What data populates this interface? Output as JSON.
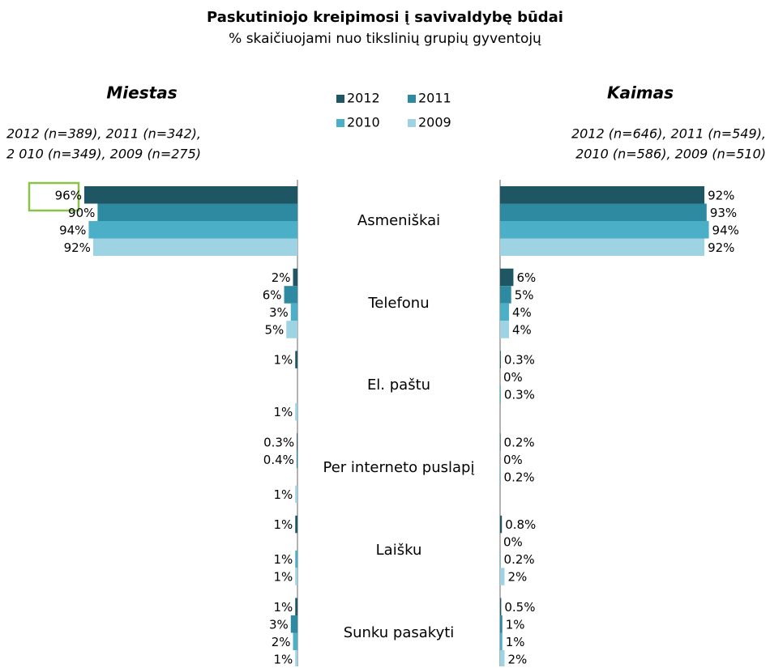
{
  "chart_data": {
    "type": "bar",
    "orientation": "horizontal",
    "title": "Paskutiniojo kreipimosi į savivaldybę būdai",
    "subtitle": "% skaičiuojami nuo tikslinių grupių gyventojų",
    "categories": [
      "Asmeniškai",
      "Telefonu",
      "El. paštu",
      "Per interneto puslapį",
      "Laišku",
      "Sunku pasakyti"
    ],
    "series": [
      {
        "name": "2012",
        "color": "#1f5663"
      },
      {
        "name": "2011",
        "color": "#2e8aa0"
      },
      {
        "name": "2010",
        "color": "#4bafc8"
      },
      {
        "name": "2009",
        "color": "#9dd3e2"
      }
    ],
    "xlim": [
      0,
      100
    ],
    "panels": [
      {
        "title": "Miestas",
        "direction": "left",
        "note": [
          "2012 (n=389), 2011 (n=342),",
          "2 010 (n=349),  2009 (n=275)"
        ],
        "series": [
          {
            "values": [
              96,
              2,
              1,
              0.3,
              1,
              1
            ],
            "value_labels": [
              "96%",
              "2%",
              "1%",
              "0.3%",
              "1%",
              "1%"
            ]
          },
          {
            "values": [
              90,
              6,
              0,
              0.4,
              0,
              3
            ],
            "value_labels": [
              "90%",
              "6%",
              null,
              "0.4%",
              null,
              "3%"
            ]
          },
          {
            "values": [
              94,
              3,
              0,
              0,
              1,
              2
            ],
            "value_labels": [
              "94%",
              "3%",
              null,
              null,
              "1%",
              "2%"
            ]
          },
          {
            "values": [
              92,
              5,
              1,
              1,
              1,
              1
            ],
            "value_labels": [
              "92%",
              "5%",
              "1%",
              "1%",
              "1%",
              "1%"
            ]
          }
        ]
      },
      {
        "title": "Kaimas",
        "direction": "right",
        "note": [
          "2012 (n=646), 2011 (n=549),",
          "2010 (n=586), 2009 (n=510)"
        ],
        "series": [
          {
            "values": [
              92,
              6,
              0.3,
              0.2,
              0.8,
              0.5
            ],
            "value_labels": [
              "92%",
              "6%",
              "0.3%",
              "0.2%",
              "0.8%",
              "0.5%"
            ]
          },
          {
            "values": [
              93,
              5,
              0,
              0,
              0,
              1
            ],
            "value_labels": [
              "93%",
              "5%",
              "0%",
              "0%",
              "0%",
              "1%"
            ]
          },
          {
            "values": [
              94,
              4,
              0.3,
              0.2,
              0.2,
              1
            ],
            "value_labels": [
              "94%",
              "4%",
              "0.3%",
              "0.2%",
              "0.2%",
              "1%"
            ]
          },
          {
            "values": [
              92,
              4,
              0,
              0,
              2,
              2
            ],
            "value_labels": [
              "92%",
              "4%",
              null,
              null,
              "2%",
              "2%"
            ]
          }
        ]
      }
    ]
  }
}
